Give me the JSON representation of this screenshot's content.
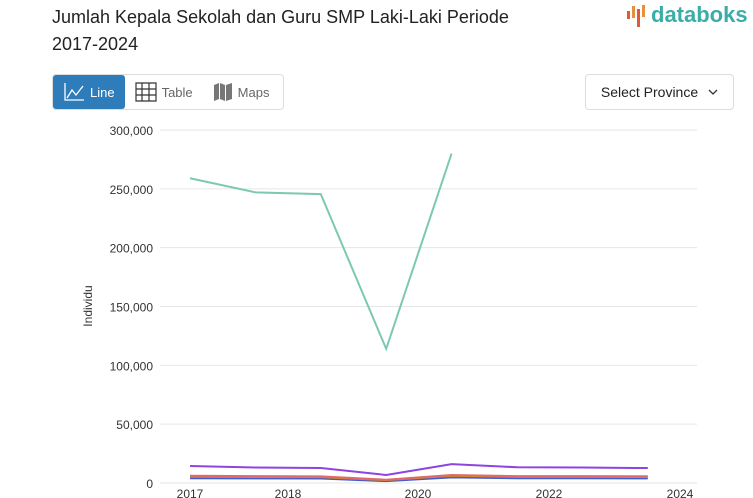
{
  "title": "Jumlah Kepala Sekolah dan Guru SMP Laki-Laki Periode 2017-2024",
  "logo": "databoks",
  "tabs": [
    {
      "label": "Line",
      "icon": "line-chart-icon",
      "active": true
    },
    {
      "label": "Table",
      "icon": "table-icon"
    },
    {
      "label": "Maps",
      "icon": "map-icon"
    }
  ],
  "select": {
    "label": "Select Province",
    "icon": "chevron-down-icon"
  },
  "chart_data": {
    "type": "line",
    "ylabel": "Individu",
    "ylim": [
      0,
      300000
    ],
    "yticks": [
      "0",
      "50,000",
      "100,000",
      "150,000",
      "200,000",
      "250,000",
      "300,000"
    ],
    "xticks": [
      "2017",
      "2018",
      "2020",
      "2022",
      "2024"
    ],
    "grid": true,
    "series": [
      {
        "color": "#7cc8b4",
        "values": [
          259000,
          247000,
          245500,
          114000,
          280000,
          null,
          null,
          null
        ]
      },
      {
        "color": "#8e44e0",
        "values": [
          14400,
          13200,
          12700,
          6800,
          16000,
          13400,
          13200,
          12700
        ]
      },
      {
        "color": "#e06a6a",
        "values": [
          6200,
          5800,
          5600,
          2800,
          6800,
          5800,
          5800,
          5700
        ]
      },
      {
        "color": "#d18a1e",
        "values": [
          5300,
          5100,
          5000,
          2400,
          6200,
          5200,
          5200,
          5100
        ]
      },
      {
        "color": "#3f5bd6",
        "values": [
          4000,
          3900,
          3800,
          1600,
          4800,
          4000,
          4000,
          3900
        ]
      }
    ]
  }
}
